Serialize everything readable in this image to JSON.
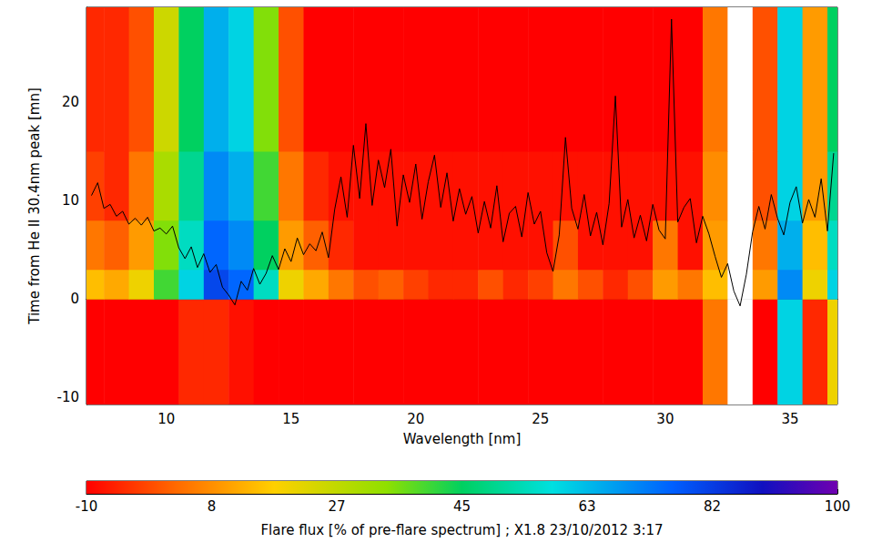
{
  "chart_data": {
    "type": "heatmap",
    "x_label": "Wavelength [nm]",
    "y_label": "Time from He II 30.4nm peak [mn]",
    "xlim": [
      6.8,
      36.9
    ],
    "xticks": [
      10,
      15,
      20,
      25,
      30,
      35
    ],
    "ylim": [
      -10.7,
      29.6
    ],
    "yticks": [
      -10,
      0,
      10,
      20
    ],
    "grid": false,
    "cells": {
      "x_edges": [
        6.5,
        7.5,
        8.5,
        9.5,
        10.5,
        11.5,
        12.5,
        13.5,
        14.5,
        15.5,
        16.5,
        17.5,
        18.5,
        19.5,
        20.5,
        21.5,
        22.5,
        23.5,
        24.5,
        25.5,
        26.5,
        27.5,
        28.5,
        29.5,
        30.5,
        31.5,
        32.5,
        33.5,
        34.5,
        35.5,
        36.5,
        37.5
      ],
      "y_edges": [
        -11,
        0,
        3,
        8,
        15,
        30
      ],
      "values": [
        [
          -10,
          -10,
          -10,
          -10,
          -5,
          -5,
          -8,
          -10,
          -10,
          -10,
          -10,
          -10,
          -10,
          -10,
          -10,
          -10,
          -10,
          -10,
          -10,
          -10,
          -10,
          -10,
          -10,
          -10,
          -10,
          5,
          120,
          -10,
          60,
          -5,
          20
        ],
        [
          15,
          12,
          20,
          40,
          60,
          80,
          75,
          55,
          20,
          12,
          5,
          0,
          2,
          -2,
          -5,
          -5,
          0,
          -5,
          -2,
          5,
          0,
          -5,
          0,
          10,
          5,
          15,
          110,
          10,
          70,
          20,
          60
        ],
        [
          5,
          2,
          10,
          35,
          55,
          75,
          70,
          45,
          10,
          2,
          -5,
          -8,
          -8,
          -8,
          -8,
          -8,
          -8,
          -8,
          -8,
          0,
          -8,
          -8,
          -8,
          5,
          -8,
          10,
          105,
          5,
          65,
          15,
          55
        ],
        [
          -2,
          -5,
          5,
          30,
          50,
          70,
          65,
          40,
          5,
          -5,
          -8,
          -8,
          -8,
          -8,
          -8,
          -8,
          -8,
          -8,
          -8,
          -8,
          -8,
          -8,
          -8,
          -8,
          -8,
          8,
          105,
          0,
          60,
          10,
          50
        ],
        [
          -5,
          -5,
          0,
          25,
          45,
          65,
          60,
          35,
          0,
          -10,
          -10,
          -10,
          -10,
          -10,
          -10,
          -10,
          -10,
          -10,
          -10,
          -10,
          -10,
          -10,
          -10,
          -10,
          -10,
          5,
          110,
          0,
          60,
          10,
          45
        ]
      ]
    },
    "colorbar": {
      "label": "Flare flux [% of pre-flare spectrum] ; X1.8 23/10/2012 3:17",
      "range": [
        -10,
        100
      ],
      "ticks": [
        -10,
        {
          "value": 8.33,
          "label": "8"
        },
        {
          "value": 26.67,
          "label": "27"
        },
        45,
        {
          "value": 63.33,
          "label": "63"
        },
        {
          "value": 81.67,
          "label": "82"
        },
        100
      ]
    },
    "series": [
      {
        "type": "line",
        "color": "#000000",
        "x": [
          7.0,
          7.25,
          7.5,
          7.75,
          8.0,
          8.25,
          8.5,
          8.75,
          9.0,
          9.25,
          9.5,
          9.75,
          10.0,
          10.25,
          10.5,
          10.75,
          11.0,
          11.25,
          11.5,
          11.75,
          12.0,
          12.25,
          12.5,
          12.75,
          13.0,
          13.25,
          13.5,
          13.75,
          14.0,
          14.25,
          14.5,
          14.75,
          15.0,
          15.25,
          15.5,
          15.75,
          16.0,
          16.25,
          16.5,
          16.75,
          17.0,
          17.25,
          17.5,
          17.75,
          18.0,
          18.25,
          18.5,
          18.75,
          19.0,
          19.25,
          19.5,
          19.75,
          20.0,
          20.25,
          20.5,
          20.75,
          21.0,
          21.25,
          21.5,
          21.75,
          22.0,
          22.25,
          22.5,
          22.75,
          23.0,
          23.25,
          23.5,
          23.75,
          24.0,
          24.25,
          24.5,
          24.75,
          25.0,
          25.25,
          25.5,
          25.75,
          26.0,
          26.25,
          26.5,
          26.75,
          27.0,
          27.25,
          27.5,
          27.75,
          28.0,
          28.25,
          28.5,
          28.75,
          29.0,
          29.25,
          29.5,
          29.75,
          30.0,
          30.25,
          30.5,
          30.75,
          31.0,
          31.25,
          31.5,
          31.75,
          32.0,
          32.25,
          32.5,
          32.75,
          33.0,
          33.25,
          33.5,
          33.75,
          34.0,
          34.25,
          34.5,
          34.75,
          35.0,
          35.25,
          35.5,
          35.75,
          36.0,
          36.25,
          36.5,
          36.75
        ],
        "values": [
          10.5,
          11.8,
          9.2,
          9.6,
          8.4,
          8.9,
          7.6,
          8.2,
          7.5,
          8.3,
          6.9,
          7.2,
          6.6,
          7.4,
          5.2,
          4.1,
          5.3,
          3.2,
          4.6,
          2.7,
          3.5,
          1.2,
          0.4,
          -0.6,
          1.8,
          0.9,
          3.1,
          1.5,
          2.6,
          4.4,
          3.0,
          5.1,
          3.8,
          6.2,
          4.5,
          5.6,
          4.9,
          6.8,
          4.2,
          9.1,
          12.4,
          8.3,
          15.6,
          10.2,
          17.8,
          9.5,
          14.1,
          11.3,
          15.2,
          7.4,
          12.6,
          9.8,
          13.7,
          8.1,
          11.9,
          14.6,
          9.3,
          12.8,
          7.9,
          11.2,
          8.6,
          10.4,
          6.7,
          9.9,
          7.2,
          11.5,
          5.8,
          8.7,
          9.4,
          6.3,
          10.8,
          7.6,
          8.9,
          4.7,
          2.8,
          6.5,
          16.4,
          9.2,
          7.1,
          10.6,
          6.4,
          8.8,
          5.5,
          9.7,
          20.6,
          7.3,
          10.1,
          6.2,
          8.5,
          5.9,
          9.6,
          7.0,
          6.1,
          28.4,
          7.8,
          9.3,
          10.2,
          5.7,
          8.4,
          6.6,
          4.3,
          2.2,
          3.6,
          0.8,
          -0.7,
          2.5,
          6.8,
          9.4,
          7.1,
          10.6,
          8.2,
          6.5,
          9.8,
          11.4,
          7.7,
          10.1,
          8.3,
          12.2,
          6.9,
          14.8
        ]
      }
    ]
  }
}
